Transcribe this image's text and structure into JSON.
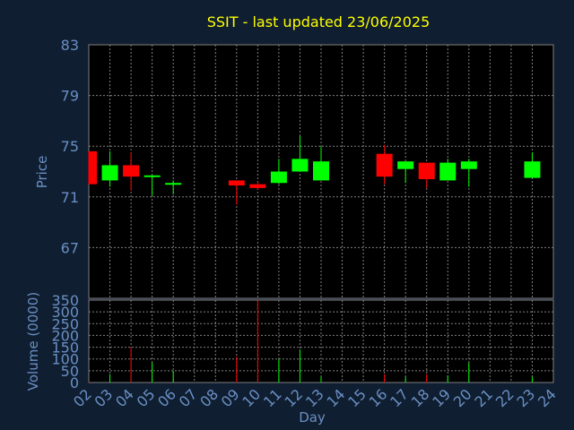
{
  "colors": {
    "background": "#0f1e30",
    "plot_background": "#000000",
    "title": "#ffff00",
    "axis_text": "#6a8fc4",
    "grid": "#808080",
    "up": "#00ff00",
    "down": "#ff0000"
  },
  "chart_data": [
    {
      "type": "candlestick",
      "title": "SSIT - last updated 23/06/2025",
      "ylabel": "Price",
      "xlabel": "Day",
      "ylim": [
        63,
        83
      ],
      "yticks": [
        "83",
        "79",
        "75",
        "71",
        "67"
      ],
      "x_ticks": [
        "02",
        "03",
        "04",
        "05",
        "06",
        "07",
        "08",
        "09",
        "10",
        "11",
        "12",
        "13",
        "14",
        "15",
        "16",
        "17",
        "18",
        "19",
        "20",
        "21",
        "22",
        "23",
        "24"
      ],
      "grid": true,
      "candles": [
        {
          "day": "02",
          "open": 74.6,
          "high": 74.6,
          "low": 72.0,
          "close": 72.0
        },
        {
          "day": "03",
          "open": 72.3,
          "high": 74.6,
          "low": 71.8,
          "close": 73.5
        },
        {
          "day": "04",
          "open": 73.5,
          "high": 74.5,
          "low": 71.5,
          "close": 72.6
        },
        {
          "day": "05",
          "open": 72.6,
          "high": 72.7,
          "low": 71.1,
          "close": 72.7
        },
        {
          "day": "06",
          "open": 72.0,
          "high": 72.3,
          "low": 71.2,
          "close": 72.1
        },
        {
          "day": "09",
          "open": 72.3,
          "high": 72.3,
          "low": 70.4,
          "close": 71.9
        },
        {
          "day": "10",
          "open": 72.0,
          "high": 72.2,
          "low": 71.6,
          "close": 71.7
        },
        {
          "day": "11",
          "open": 72.1,
          "high": 74.0,
          "low": 72.0,
          "close": 73.0
        },
        {
          "day": "12",
          "open": 73.0,
          "high": 75.8,
          "low": 73.0,
          "close": 74.0
        },
        {
          "day": "13",
          "open": 72.3,
          "high": 75.0,
          "low": 72.3,
          "close": 73.8
        },
        {
          "day": "16",
          "open": 74.4,
          "high": 75.1,
          "low": 72.0,
          "close": 72.6
        },
        {
          "day": "17",
          "open": 73.2,
          "high": 73.8,
          "low": 72.1,
          "close": 73.8
        },
        {
          "day": "18",
          "open": 73.7,
          "high": 73.7,
          "low": 71.7,
          "close": 72.4
        },
        {
          "day": "19",
          "open": 72.3,
          "high": 74.0,
          "low": 72.3,
          "close": 73.7
        },
        {
          "day": "20",
          "open": 73.2,
          "high": 74.0,
          "low": 71.8,
          "close": 73.8
        },
        {
          "day": "23",
          "open": 72.5,
          "high": 74.5,
          "low": 72.5,
          "close": 73.8
        }
      ]
    },
    {
      "type": "bar",
      "ylabel": "Volume (0000)",
      "ylim": [
        0,
        350
      ],
      "yticks": [
        "350",
        "300",
        "250",
        "200",
        "150",
        "100",
        "50",
        "0"
      ],
      "volumes": [
        {
          "day": "02",
          "value": 3,
          "direction": "down"
        },
        {
          "day": "03",
          "value": 35,
          "direction": "up"
        },
        {
          "day": "04",
          "value": 150,
          "direction": "down"
        },
        {
          "day": "05",
          "value": 85,
          "direction": "up"
        },
        {
          "day": "06",
          "value": 50,
          "direction": "up"
        },
        {
          "day": "09",
          "value": 110,
          "direction": "down"
        },
        {
          "day": "10",
          "value": 350,
          "direction": "down"
        },
        {
          "day": "11",
          "value": 100,
          "direction": "up"
        },
        {
          "day": "12",
          "value": 140,
          "direction": "up"
        },
        {
          "day": "13",
          "value": 25,
          "direction": "up"
        },
        {
          "day": "16",
          "value": 35,
          "direction": "down"
        },
        {
          "day": "17",
          "value": 25,
          "direction": "up"
        },
        {
          "day": "18",
          "value": 35,
          "direction": "down"
        },
        {
          "day": "19",
          "value": 30,
          "direction": "up"
        },
        {
          "day": "20",
          "value": 85,
          "direction": "up"
        },
        {
          "day": "23",
          "value": 25,
          "direction": "up"
        }
      ]
    }
  ]
}
